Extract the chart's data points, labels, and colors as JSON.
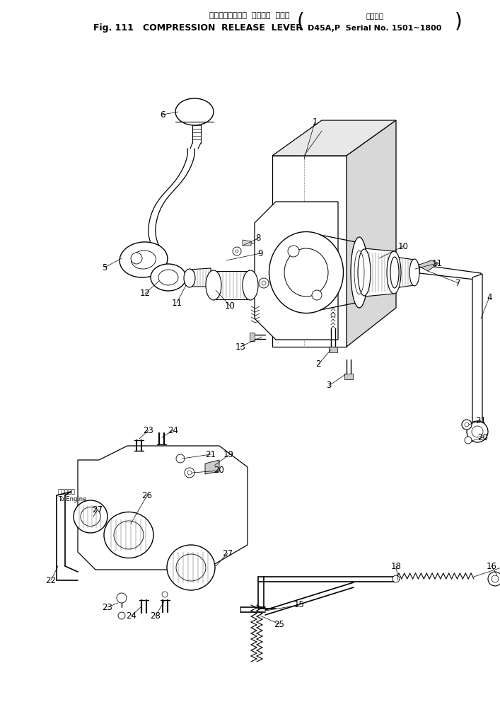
{
  "bg_color": "#ffffff",
  "fig_width": 7.07,
  "fig_height": 9.92,
  "dpi": 100,
  "title_jp": "コンプレッション  リリーズ  レバー",
  "title_en": "Fig. 111   COMPRESSION  RELEASE  LEVER",
  "title_right_jp": "適用号機",
  "title_right_en": "D45A,P  Serial No. 1501~1800"
}
